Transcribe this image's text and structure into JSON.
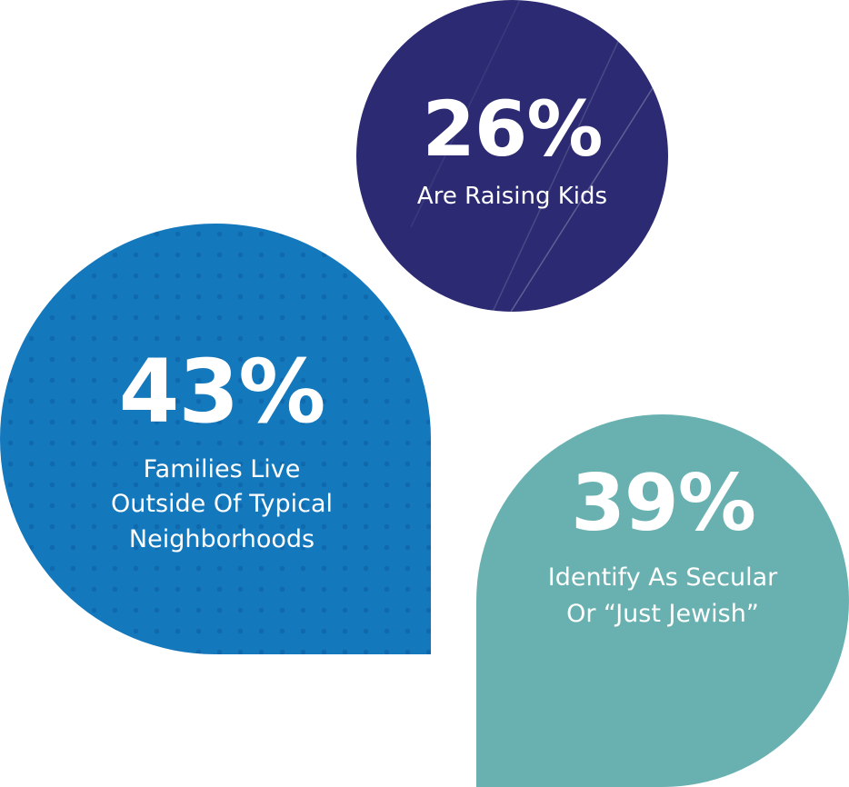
{
  "stats": [
    {
      "value": "26%",
      "label": [
        "Are Raising Kids"
      ]
    },
    {
      "value": "43%",
      "label": [
        "Families Live",
        "Outside Of Typical",
        "Neighborhoods"
      ]
    },
    {
      "value": "39%",
      "label": [
        "Identify As Secular",
        "Or “Just Jewish”"
      ]
    }
  ]
}
